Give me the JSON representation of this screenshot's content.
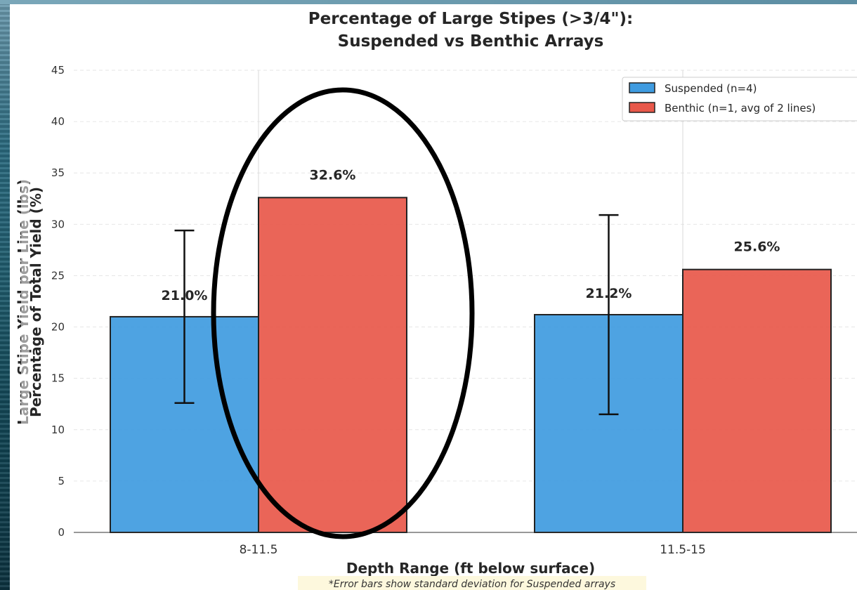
{
  "chart_data": {
    "type": "bar",
    "title_line1": "Percentage of Large Stipes (>3/4\"):",
    "title_line2": "Suspended vs Benthic Arrays",
    "xlabel": "Depth Range (ft below surface)",
    "ylabel": "Percentage of Total Yield (%)",
    "ylabel_behind": "Large Stipe Yield per Line (lbs)",
    "categories": [
      "8-11.5",
      "11.5-15"
    ],
    "ylim": [
      0,
      45
    ],
    "yticks": [
      0,
      5,
      10,
      15,
      20,
      25,
      30,
      35,
      40,
      45
    ],
    "grid": true,
    "legend_position": "top-right",
    "series": [
      {
        "name": "Suspended (n=4)",
        "color": "#3f9be0",
        "values": [
          21.0,
          21.2
        ],
        "labels": [
          "21.0%",
          "21.2%"
        ],
        "error": [
          [
            12.6,
            29.4
          ],
          [
            11.5,
            30.9
          ]
        ]
      },
      {
        "name": "Benthic (n=1, avg of 2 lines)",
        "color": "#e8584a",
        "values": [
          32.6,
          25.6
        ],
        "labels": [
          "32.6%",
          "25.6%"
        ]
      }
    ],
    "footnote": "*Error bars show standard deviation for Suspended arrays",
    "annotation": "hand-drawn-ellipse-around-benthic-8-11.5"
  }
}
